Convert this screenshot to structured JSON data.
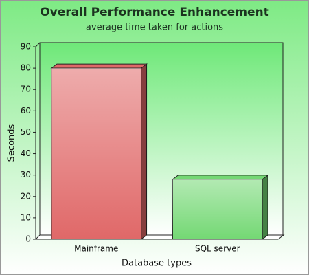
{
  "chart_data": {
    "type": "bar3d",
    "title": "Overall Performance Enhancement",
    "subtitle": "average time taken for actions",
    "x_label": "Database types",
    "y_label": "Seconds",
    "categories": [
      "Mainframe",
      "SQL server"
    ],
    "values": [
      80,
      28
    ],
    "colors": [
      "#e06868",
      "#74d874"
    ],
    "ylim": [
      0,
      90
    ],
    "yticks": [
      0,
      10,
      20,
      30,
      40,
      50,
      60,
      70,
      80,
      90
    ],
    "grid": false
  }
}
